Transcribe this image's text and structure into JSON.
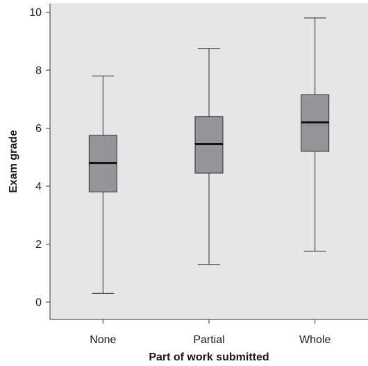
{
  "chart_data": {
    "type": "box",
    "categories": [
      "None",
      "Partial",
      "Whole"
    ],
    "boxes": [
      {
        "category": "None",
        "min": 0.3,
        "q1": 3.8,
        "median": 4.8,
        "q3": 5.75,
        "max": 7.8
      },
      {
        "category": "Partial",
        "min": 1.3,
        "q1": 4.45,
        "median": 5.45,
        "q3": 6.4,
        "max": 8.75
      },
      {
        "category": "Whole",
        "min": 1.75,
        "q1": 5.2,
        "median": 6.2,
        "q3": 7.15,
        "max": 9.8
      }
    ],
    "xlabel": "Part of work submitted",
    "ylabel": "Exam grade",
    "ylim": [
      -0.6,
      10.3
    ],
    "yticks": [
      0,
      2,
      4,
      6,
      8,
      10
    ],
    "grid": false,
    "colors": {
      "plot_background": "#e6e6e9",
      "box_fill": "#959599",
      "box_stroke": "#2a2a2a",
      "median": "#111111",
      "whisker": "#2a2a2a",
      "axis": "#333333"
    }
  }
}
